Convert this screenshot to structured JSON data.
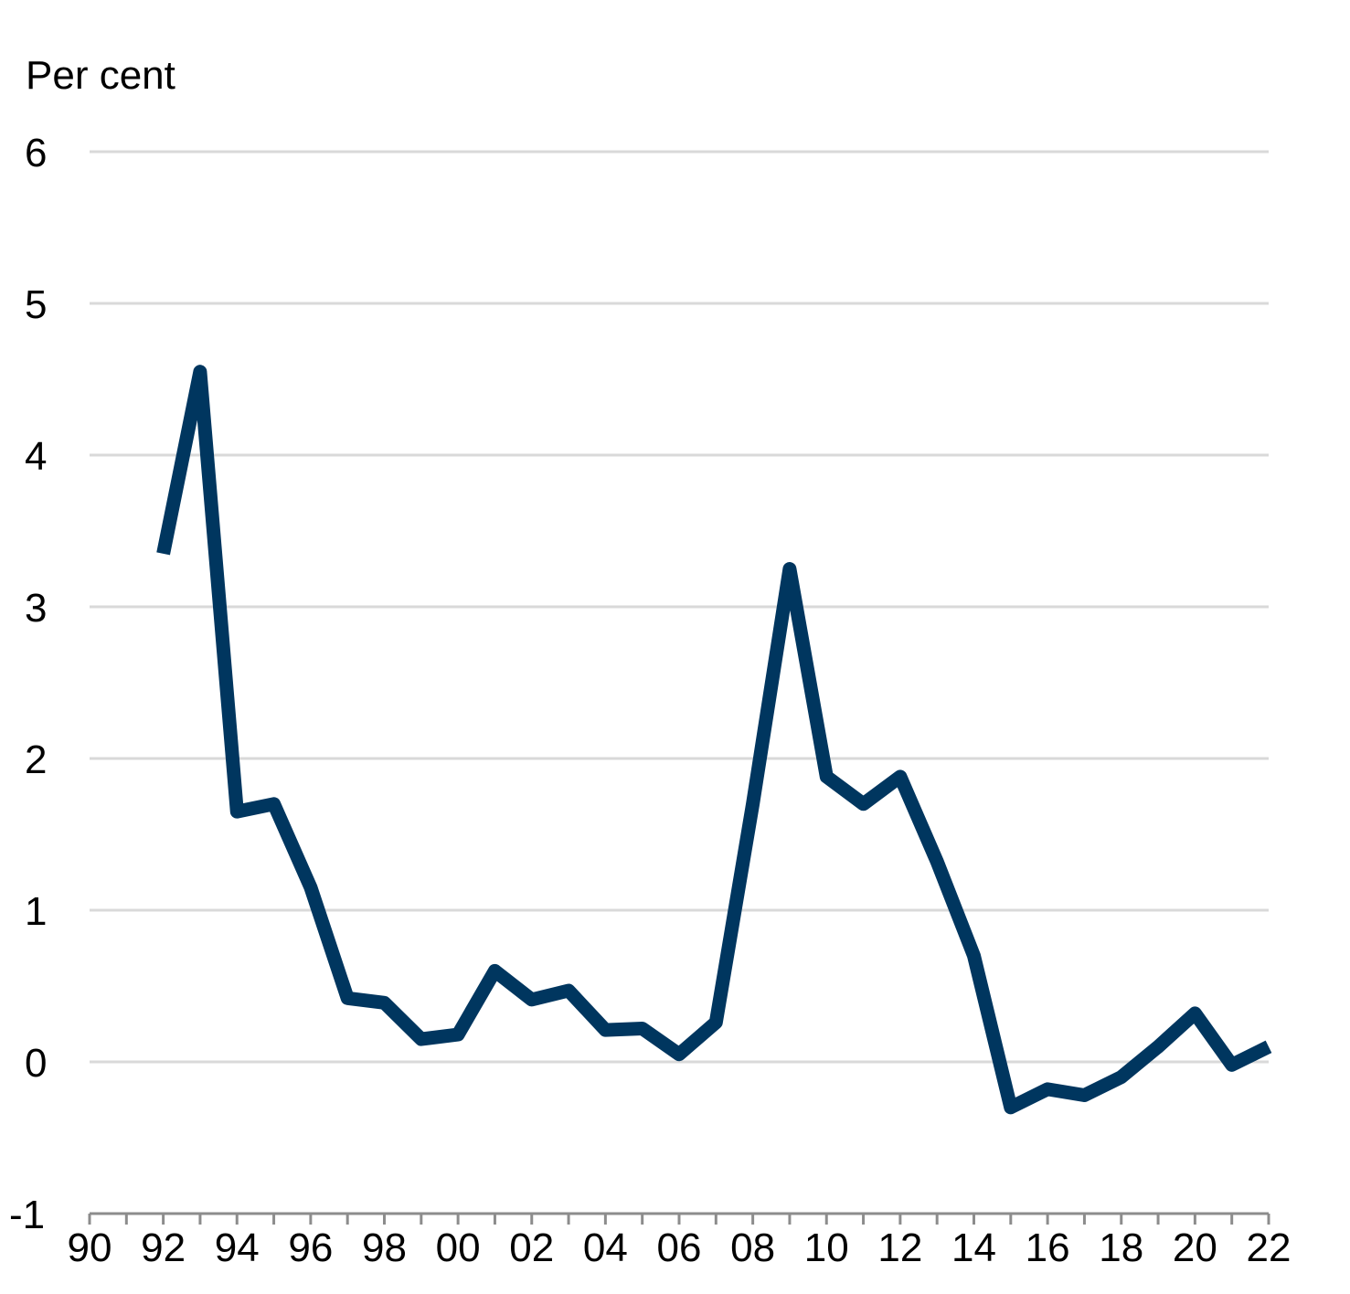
{
  "chart_data": {
    "type": "line",
    "title": "",
    "xlabel": "",
    "ylabel": "Per cent",
    "y_unit_label": "Per cent",
    "xlim": [
      1990,
      2022
    ],
    "ylim": [
      -1,
      6
    ],
    "y_ticks": [
      -1,
      0,
      1,
      2,
      3,
      4,
      5,
      6
    ],
    "y_tick_labels": [
      "-1",
      "0",
      "1",
      "2",
      "3",
      "4",
      "5",
      "6"
    ],
    "x_ticks": [
      1990,
      1992,
      1994,
      1996,
      1998,
      2000,
      2002,
      2004,
      2006,
      2008,
      2010,
      2012,
      2014,
      2016,
      2018,
      2020,
      2022
    ],
    "x_tick_labels": [
      "90",
      "92",
      "94",
      "96",
      "98",
      "00",
      "02",
      "04",
      "06",
      "08",
      "10",
      "12",
      "14",
      "16",
      "18",
      "20",
      "22"
    ],
    "grid": "horizontal",
    "legend": "none",
    "series": [
      {
        "color": "#00365f",
        "x": [
          1992,
          1993,
          1994,
          1995,
          1996,
          1997,
          1998,
          1999,
          2000,
          2001,
          2002,
          2003,
          2004,
          2005,
          2006,
          2007,
          2008,
          2009,
          2010,
          2011,
          2012,
          2013,
          2014,
          2015,
          2016,
          2017,
          2018,
          2019,
          2020,
          2021,
          2022
        ],
        "values": [
          3.35,
          4.55,
          1.65,
          1.7,
          1.15,
          0.42,
          0.39,
          0.15,
          0.18,
          0.6,
          0.41,
          0.47,
          0.21,
          0.22,
          0.05,
          0.26,
          1.7,
          3.25,
          1.88,
          1.7,
          1.88,
          1.32,
          0.7,
          -0.3,
          -0.18,
          -0.22,
          -0.1,
          0.1,
          0.32,
          -0.02,
          0.1
        ]
      }
    ]
  }
}
